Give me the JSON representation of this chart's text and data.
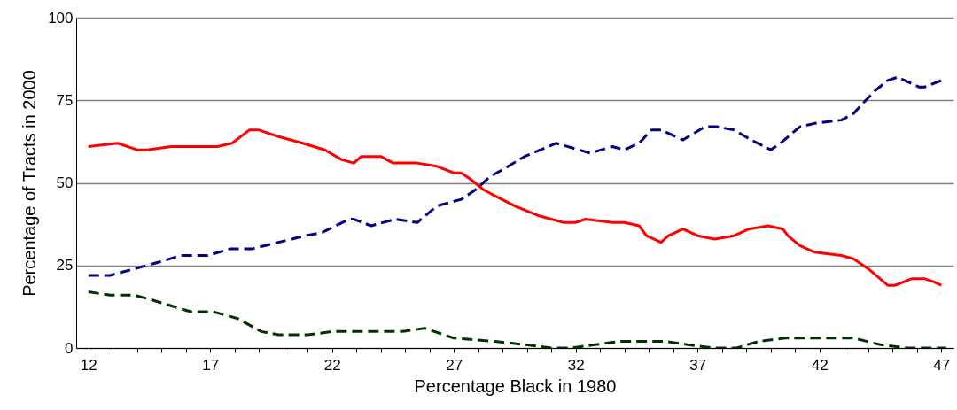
{
  "chart_data": {
    "type": "line",
    "xlabel": "Percentage Black in 1980",
    "ylabel": "Percentage of Tracts in 2000",
    "xlim": [
      11.5,
      47.5
    ],
    "xticks": [
      {
        "value": 12,
        "label": "12"
      },
      {
        "value": 13,
        "label": null
      },
      {
        "value": 14,
        "label": null
      },
      {
        "value": 15,
        "label": null
      },
      {
        "value": 16,
        "label": null
      },
      {
        "value": 17,
        "label": "17"
      },
      {
        "value": 18,
        "label": null
      },
      {
        "value": 19,
        "label": null
      },
      {
        "value": 20,
        "label": null
      },
      {
        "value": 21,
        "label": null
      },
      {
        "value": 22,
        "label": "22"
      },
      {
        "value": 23,
        "label": null
      },
      {
        "value": 24,
        "label": null
      },
      {
        "value": 25,
        "label": null
      },
      {
        "value": 26,
        "label": null
      },
      {
        "value": 27,
        "label": "27"
      },
      {
        "value": 28,
        "label": null
      },
      {
        "value": 29,
        "label": null
      },
      {
        "value": 30,
        "label": null
      },
      {
        "value": 31,
        "label": null
      },
      {
        "value": 32,
        "label": "32"
      },
      {
        "value": 33,
        "label": null
      },
      {
        "value": 34,
        "label": null
      },
      {
        "value": 35,
        "label": null
      },
      {
        "value": 36,
        "label": null
      },
      {
        "value": 37,
        "label": "37"
      },
      {
        "value": 38,
        "label": null
      },
      {
        "value": 39,
        "label": null
      },
      {
        "value": 40,
        "label": null
      },
      {
        "value": 41,
        "label": null
      },
      {
        "value": 42,
        "label": "42"
      },
      {
        "value": 43,
        "label": null
      },
      {
        "value": 44,
        "label": null
      },
      {
        "value": 45,
        "label": null
      },
      {
        "value": 46,
        "label": null
      },
      {
        "value": 47,
        "label": "47"
      }
    ],
    "ylim": [
      0,
      100
    ],
    "yticks": [
      0,
      25,
      50,
      75,
      100
    ],
    "grid": "y",
    "series": [
      {
        "color": "#ff0000",
        "line_style": "solid",
        "x": [
          12.0,
          13.2,
          14.0,
          14.4,
          15.4,
          16.3,
          17.3,
          17.9,
          18.6,
          19.0,
          19.8,
          20.8,
          21.7,
          22.4,
          22.9,
          23.2,
          23.6,
          24.0,
          24.5,
          25.0,
          25.5,
          26.3,
          27.0,
          27.3,
          27.7,
          28.2,
          28.7,
          29.5,
          30.5,
          31.5,
          32.0,
          32.4,
          33.5,
          34.0,
          34.6,
          34.9,
          35.5,
          35.8,
          36.4,
          37.0,
          37.7,
          38.5,
          39.1,
          39.9,
          40.5,
          40.7,
          41.2,
          41.8,
          42.9,
          43.4,
          44.0,
          44.8,
          45.1,
          45.8,
          46.3,
          46.7,
          47.0
        ],
        "values": [
          61,
          62,
          60,
          60,
          61,
          61,
          61,
          62,
          66,
          66,
          64,
          62,
          60,
          57,
          56,
          58,
          58,
          58,
          56,
          56,
          56,
          55,
          53,
          53,
          51,
          48,
          46,
          43,
          40,
          38,
          38,
          39,
          38,
          38,
          37,
          34,
          32,
          34,
          36,
          34,
          33,
          34,
          36,
          37,
          36,
          34,
          31,
          29,
          28,
          27,
          24,
          19,
          19,
          21,
          21,
          20,
          19
        ]
      },
      {
        "color": "#000080",
        "line_style": "dashed",
        "x": [
          12.0,
          12.9,
          13.9,
          14.9,
          15.8,
          16.9,
          17.8,
          18.7,
          19.8,
          20.9,
          21.6,
          22.7,
          22.9,
          23.6,
          24.6,
          25.5,
          26.3,
          27.3,
          27.9,
          28.5,
          29.0,
          29.9,
          31.2,
          32.6,
          33.5,
          34.0,
          34.6,
          35.1,
          35.5,
          36.4,
          37.3,
          37.8,
          38.5,
          39.2,
          40.0,
          40.4,
          41.2,
          41.8,
          42.9,
          43.4,
          43.9,
          44.3,
          44.8,
          45.2,
          46.1,
          46.3,
          47.0
        ],
        "values": [
          22,
          22,
          24,
          26,
          28,
          28,
          30,
          30,
          32,
          34,
          35,
          39,
          39,
          37,
          39,
          38,
          43,
          45,
          48,
          52,
          54,
          58,
          62,
          59,
          61,
          60,
          62,
          66,
          66,
          63,
          67,
          67,
          66,
          63,
          60,
          62,
          67,
          68,
          69,
          71,
          75,
          78,
          81,
          82,
          79,
          79,
          81
        ]
      },
      {
        "color": "#003300",
        "line_style": "dashed",
        "x": [
          12.0,
          12.9,
          13.9,
          14.4,
          15.3,
          16.2,
          17.1,
          18.1,
          19.1,
          19.8,
          21.0,
          22.0,
          22.9,
          23.9,
          24.9,
          25.8,
          27.0,
          28.7,
          29.9,
          31.0,
          31.8,
          32.8,
          33.8,
          34.7,
          35.7,
          36.6,
          37.7,
          38.6,
          39.5,
          40.6,
          41.9,
          43.4,
          44.5,
          45.6,
          47.2
        ],
        "values": [
          17,
          16,
          16,
          15,
          13,
          11,
          11,
          9,
          5,
          4,
          4,
          5,
          5,
          5,
          5,
          6,
          3,
          2,
          1,
          0,
          0,
          1,
          2,
          2,
          2,
          1,
          0,
          0,
          2,
          3,
          3,
          3,
          1,
          0,
          0
        ]
      }
    ]
  }
}
